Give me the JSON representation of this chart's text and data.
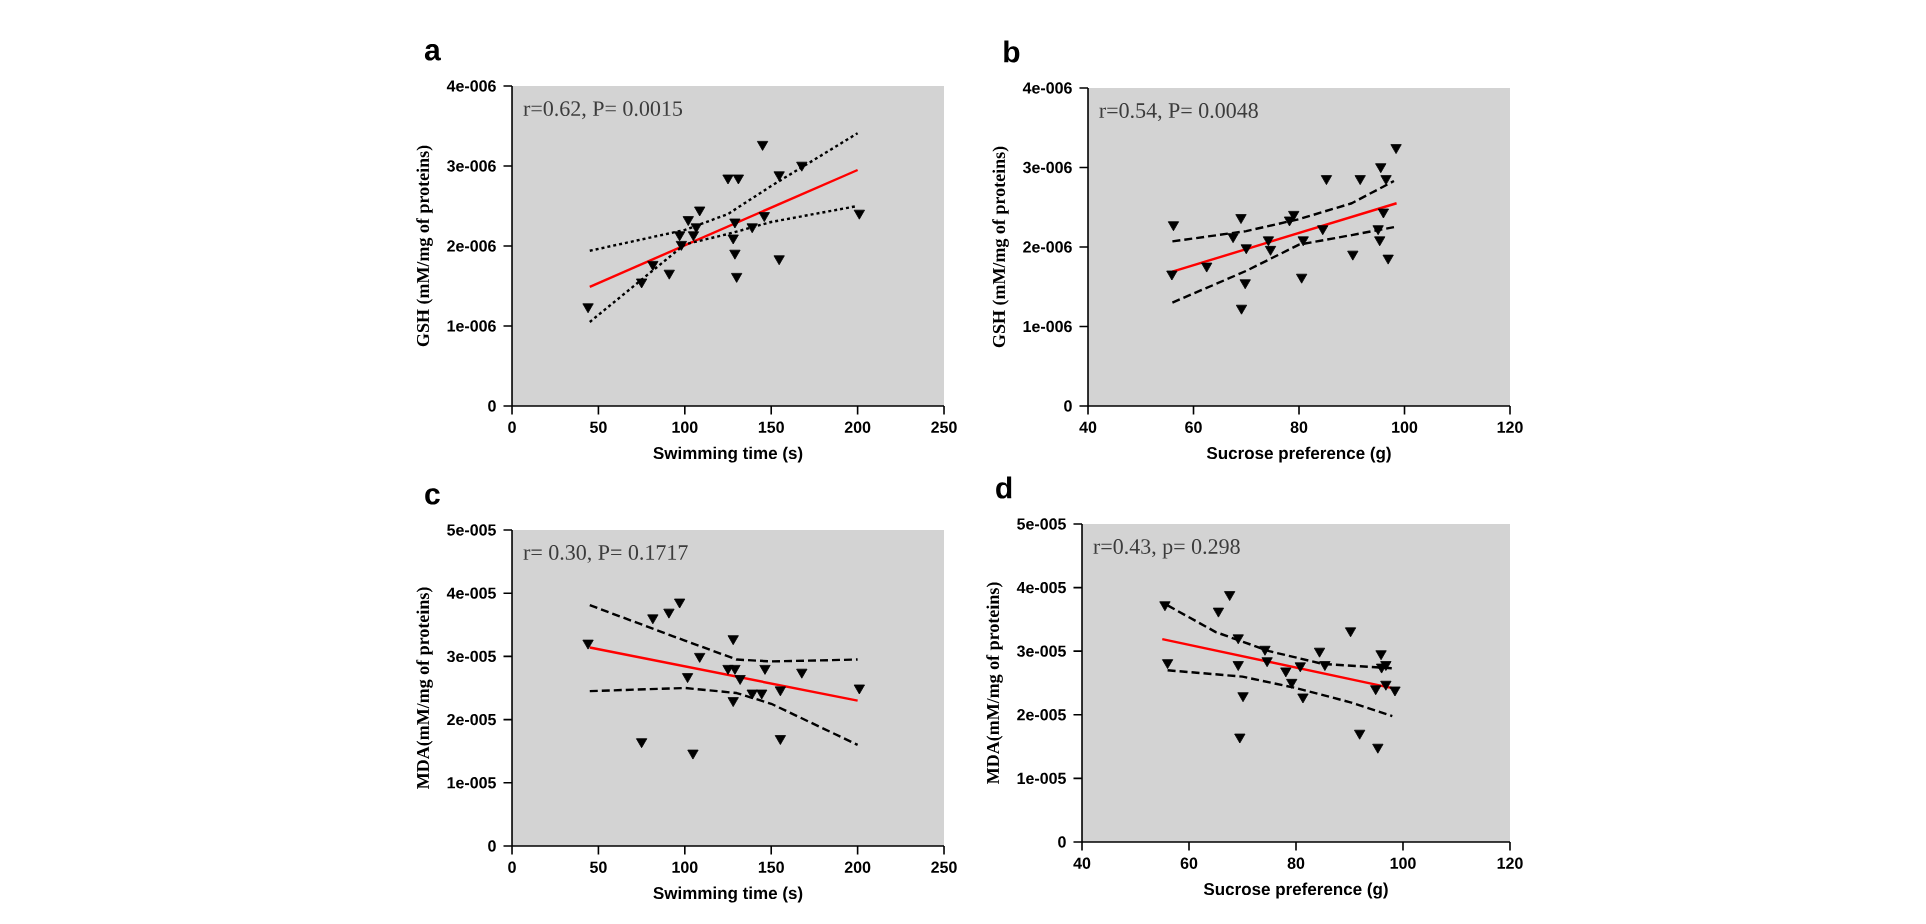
{
  "chart_data": [
    {
      "type": "scatter",
      "title": "a",
      "xlabel": "Swimming time (s)",
      "ylabel": "GSH (mM/mg of proteins)",
      "annotations": [
        "r=0.62, P= 0.0015"
      ],
      "xlim": [
        0,
        250
      ],
      "ylim": [
        0,
        4e-06
      ],
      "xticks": [
        0,
        50,
        100,
        150,
        200,
        250
      ],
      "yticks": [
        0,
        {
          "value": 1e-06,
          "label": "1e-006"
        },
        {
          "value": 2e-06,
          "label": "2e-006"
        },
        {
          "value": 3e-06,
          "label": "3e-006"
        },
        {
          "value": 4e-06,
          "label": "4e-006"
        }
      ],
      "series": [
        {
          "type": "scatter",
          "color": "#000000",
          "marker": "triangle",
          "x": [
            44,
            75,
            81.5,
            91,
            97,
            98,
            102,
            105,
            108.6,
            106.6,
            125,
            131,
            129,
            128,
            129,
            130,
            139,
            145,
            146,
            154.6,
            154.6,
            167.7,
            201
          ],
          "values": [
            1.24e-06,
            1.55e-06,
            1.77e-06,
            1.66e-06,
            2.14e-06,
            2.02e-06,
            2.33e-06,
            2.14e-06,
            2.45e-06,
            2.24e-06,
            2.85e-06,
            2.85e-06,
            2.3e-06,
            2.1e-06,
            1.91e-06,
            1.62e-06,
            2.24e-06,
            3.27e-06,
            2.38e-06,
            1.84e-06,
            2.89e-06,
            3.01e-06,
            2.41e-06
          ]
        },
        {
          "type": "line",
          "color": "#ff0000",
          "line_style": "solid",
          "x": [
            45,
            200
          ],
          "values": [
            1.49e-06,
            2.95e-06
          ]
        },
        {
          "type": "line",
          "color": "#000000",
          "line_style": "dotted",
          "x": [
            45,
            100,
            125,
            150,
            200
          ],
          "values": [
            1.94e-06,
            2.2e-06,
            2.4e-06,
            2.75e-06,
            3.41e-06
          ]
        },
        {
          "type": "line",
          "color": "#000000",
          "line_style": "dotted",
          "x": [
            45,
            100,
            125,
            150,
            200
          ],
          "values": [
            1.05e-06,
            2.02e-06,
            2.15e-06,
            2.3e-06,
            2.5e-06
          ]
        }
      ]
    },
    {
      "type": "scatter",
      "title": "b",
      "xlabel": "Sucrose preference (g)",
      "ylabel": "GSH (mM/mg of proteins)",
      "annotations": [
        "r=0.54, P= 0.0048"
      ],
      "xlim": [
        40,
        120
      ],
      "ylim": [
        0,
        4e-06
      ],
      "xticks": [
        40,
        60,
        80,
        100,
        120
      ],
      "yticks": [
        0,
        {
          "value": 1e-06,
          "label": "1e-006"
        },
        {
          "value": 2e-06,
          "label": "2e-006"
        },
        {
          "value": 3e-06,
          "label": "3e-006"
        },
        {
          "value": 4e-06,
          "label": "4e-006"
        }
      ],
      "series": [
        {
          "type": "scatter",
          "color": "#000000",
          "marker": "triangle",
          "x": [
            56.2,
            55.9,
            62.5,
            67.5,
            69,
            70,
            69.8,
            69.1,
            74.2,
            74.6,
            78.2,
            79,
            80.8,
            80.5,
            84.5,
            85.2,
            90.2,
            91.6,
            95,
            95.3,
            95.5,
            96,
            96.5,
            96.9,
            98.4
          ],
          "values": [
            2.28e-06,
            1.66e-06,
            1.76e-06,
            2.13e-06,
            2.37e-06,
            1.99e-06,
            1.55e-06,
            1.23e-06,
            2.09e-06,
            1.97e-06,
            2.34e-06,
            2.41e-06,
            2.09e-06,
            1.62e-06,
            2.23e-06,
            2.86e-06,
            1.91e-06,
            2.86e-06,
            2.23e-06,
            2.09e-06,
            3.01e-06,
            2.44e-06,
            2.86e-06,
            1.86e-06,
            3.25e-06
          ]
        },
        {
          "type": "line",
          "color": "#ff0000",
          "line_style": "solid",
          "x": [
            56,
            98.5
          ],
          "values": [
            1.69e-06,
            2.55e-06
          ]
        },
        {
          "type": "line",
          "color": "#000000",
          "line_style": "dashed",
          "x": [
            56,
            70,
            80,
            90,
            98
          ],
          "values": [
            2.07e-06,
            2.2e-06,
            2.35e-06,
            2.55e-06,
            2.83e-06
          ]
        },
        {
          "type": "line",
          "color": "#000000",
          "line_style": "dashed",
          "x": [
            56,
            70,
            80,
            90,
            98
          ],
          "values": [
            1.3e-06,
            1.7e-06,
            2.03e-06,
            2.15e-06,
            2.25e-06
          ]
        }
      ]
    },
    {
      "type": "scatter",
      "title": "c",
      "xlabel": "Swimming time (s)",
      "ylabel": "MDA(mM/mg of proteins)",
      "annotations": [
        "r= 0.30, P= 0.1717"
      ],
      "xlim": [
        0,
        250
      ],
      "ylim": [
        0,
        5e-05
      ],
      "xticks": [
        0,
        50,
        100,
        150,
        200,
        250
      ],
      "yticks": [
        0,
        {
          "value": 1e-05,
          "label": "1e-005"
        },
        {
          "value": 2e-05,
          "label": "2e-005"
        },
        {
          "value": 3e-05,
          "label": "3e-005"
        },
        {
          "value": 4e-05,
          "label": "4e-005"
        },
        {
          "value": 5e-05,
          "label": "5e-005"
        }
      ],
      "series": [
        {
          "type": "scatter",
          "color": "#000000",
          "marker": "triangle",
          "x": [
            44,
            75,
            81.5,
            90.8,
            97,
            101.6,
            104.7,
            108.6,
            125,
            128,
            128,
            129,
            132,
            139,
            144.5,
            146.4,
            155.3,
            155.3,
            167.7,
            201
          ],
          "values": [
            3.21e-05,
            1.65e-05,
            3.61e-05,
            3.7e-05,
            3.86e-05,
            2.68e-05,
            1.47e-05,
            3e-05,
            2.81e-05,
            3.28e-05,
            2.3e-05,
            2.81e-05,
            2.65e-05,
            2.42e-05,
            2.42e-05,
            2.81e-05,
            2.47e-05,
            1.7e-05,
            2.75e-05,
            2.5e-05
          ]
        },
        {
          "type": "line",
          "color": "#ff0000",
          "line_style": "solid",
          "x": [
            45,
            200
          ],
          "values": [
            3.14e-05,
            2.3e-05
          ]
        },
        {
          "type": "line",
          "color": "#000000",
          "line_style": "dashed",
          "x": [
            45,
            100,
            130,
            150,
            200
          ],
          "values": [
            3.81e-05,
            3.25e-05,
            2.95e-05,
            2.92e-05,
            2.95e-05
          ]
        },
        {
          "type": "line",
          "color": "#000000",
          "line_style": "dashed",
          "x": [
            45,
            100,
            130,
            150,
            200
          ],
          "values": [
            2.45e-05,
            2.5e-05,
            2.42e-05,
            2.25e-05,
            1.6e-05
          ]
        }
      ]
    },
    {
      "type": "scatter",
      "title": "d",
      "xlabel": "Sucrose preference (g)",
      "ylabel": "MDA(mM/mg of proteins)",
      "annotations": [
        "r=0.43, p= 0.298"
      ],
      "xlim": [
        40,
        120
      ],
      "ylim": [
        0,
        5e-05
      ],
      "xticks": [
        40,
        60,
        80,
        100,
        120
      ],
      "yticks": [
        0,
        {
          "value": 1e-05,
          "label": "1e-005"
        },
        {
          "value": 2e-05,
          "label": "2e-005"
        },
        {
          "value": 3e-05,
          "label": "3e-005"
        },
        {
          "value": 4e-05,
          "label": "4e-005"
        },
        {
          "value": 5e-05,
          "label": "5e-005"
        }
      ],
      "series": [
        {
          "type": "scatter",
          "color": "#000000",
          "marker": "triangle",
          "x": [
            55.5,
            56,
            65.5,
            67.6,
            69.2,
            69.2,
            70.1,
            69.5,
            74.2,
            74.6,
            78.1,
            79.2,
            80.8,
            81.3,
            84.4,
            85.4,
            90.2,
            91.9,
            94.9,
            95.3,
            95.9,
            96,
            96.8,
            96.8,
            98.5
          ],
          "values": [
            3.73e-05,
            2.82e-05,
            3.63e-05,
            3.89e-05,
            3.21e-05,
            2.79e-05,
            2.3e-05,
            1.65e-05,
            3.03e-05,
            2.85e-05,
            2.69e-05,
            2.51e-05,
            2.77e-05,
            2.28e-05,
            3e-05,
            2.79e-05,
            3.32e-05,
            1.71e-05,
            2.41e-05,
            1.49e-05,
            2.96e-05,
            2.75e-05,
            2.79e-05,
            2.48e-05,
            2.39e-05
          ]
        },
        {
          "type": "line",
          "color": "#ff0000",
          "line_style": "solid",
          "x": [
            55,
            98
          ],
          "values": [
            3.19e-05,
            2.42e-05
          ]
        },
        {
          "type": "line",
          "color": "#000000",
          "line_style": "dashed",
          "x": [
            56,
            65,
            75,
            85,
            98
          ],
          "values": [
            3.72e-05,
            3.3e-05,
            3e-05,
            2.8e-05,
            2.73e-05
          ]
        },
        {
          "type": "line",
          "color": "#000000",
          "line_style": "dashed",
          "x": [
            56,
            70,
            80,
            90,
            98
          ],
          "values": [
            2.7e-05,
            2.6e-05,
            2.42e-05,
            2.2e-05,
            1.98e-05
          ]
        }
      ]
    }
  ]
}
